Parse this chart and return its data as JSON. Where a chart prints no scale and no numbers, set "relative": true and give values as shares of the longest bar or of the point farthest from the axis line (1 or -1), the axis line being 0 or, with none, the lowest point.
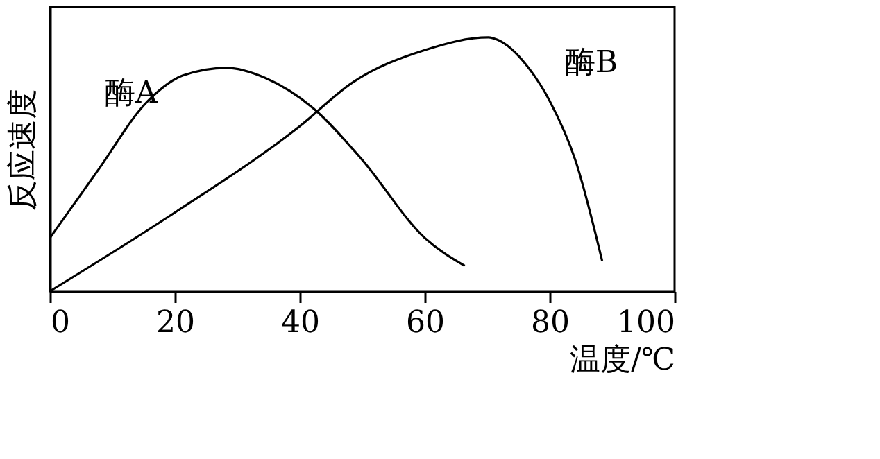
{
  "chart_data": {
    "type": "line",
    "relative": true,
    "xlabel": "温度/℃",
    "ylabel": "反应速度",
    "xlim": [
      0,
      100
    ],
    "xticks": [
      0,
      20,
      40,
      60,
      80,
      100
    ],
    "grid": false,
    "marker": "none",
    "line_style": "solid",
    "series": [
      {
        "name": "酶A",
        "color": "#000000",
        "x": [
          0,
          7.5,
          15.7,
          21.3,
          28.3,
          34.5,
          42.2,
          49.9,
          60,
          66.4
        ],
        "values": [
          0.21,
          0.47,
          0.75,
          0.85,
          0.88,
          0.84,
          0.72,
          0.52,
          0.21,
          0.1
        ]
      },
      {
        "name": "酶B",
        "color": "#000000",
        "x": [
          0,
          20,
          40,
          48.3,
          60,
          70.2,
          71.7,
          76.3,
          80,
          84.2,
          88.4
        ],
        "values": [
          0,
          0.31,
          0.65,
          0.82,
          0.95,
          1.0,
          0.99,
          0.89,
          0.75,
          0.51,
          0.12
        ]
      }
    ]
  }
}
